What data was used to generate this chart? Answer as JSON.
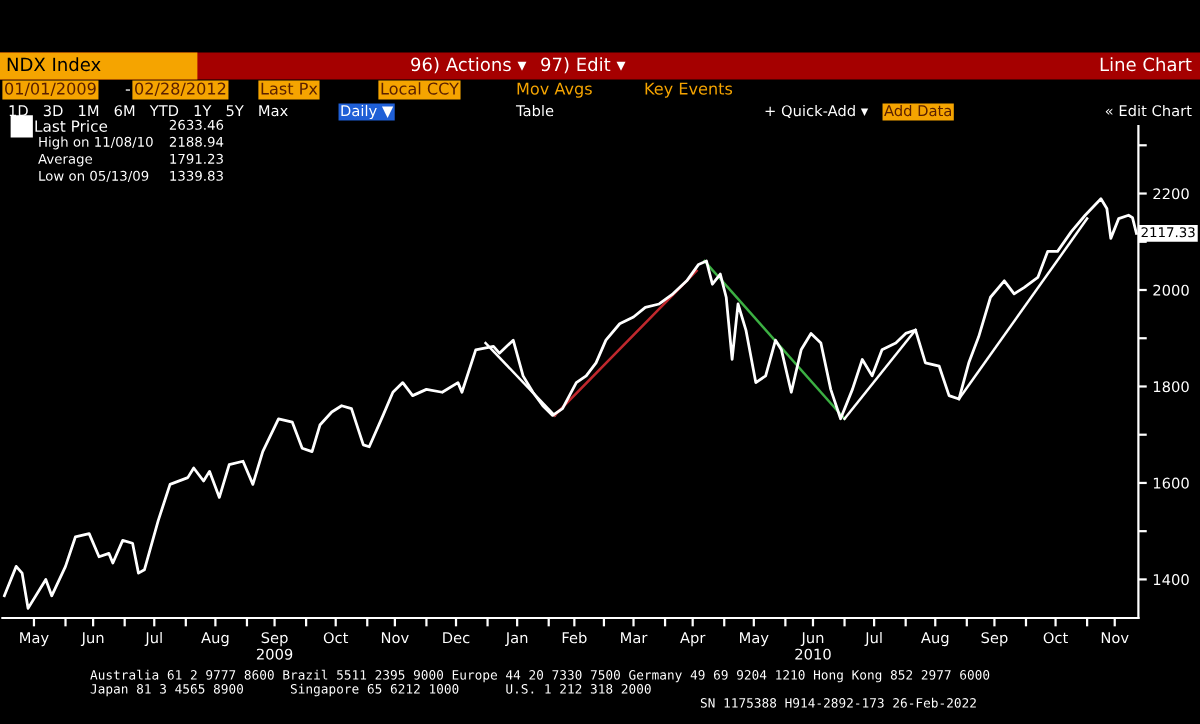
{
  "chart_data": {
    "type": "line",
    "title": "NDX Index",
    "subtitle": "Line Chart",
    "xlim": [
      "2009-04-30",
      "2010-11-27"
    ],
    "xticks": [
      {
        "value": "2009-05-16",
        "label": "May"
      },
      {
        "value": "2009-06-15",
        "label": "Jun"
      },
      {
        "value": "2009-07-16",
        "label": "Jul"
      },
      {
        "value": "2009-08-16",
        "label": "Aug"
      },
      {
        "value": "2009-09-15",
        "label": "Sep\n2009"
      },
      {
        "value": "2009-10-16",
        "label": "Oct"
      },
      {
        "value": "2009-11-15",
        "label": "Nov"
      },
      {
        "value": "2009-12-16",
        "label": "Dec"
      },
      {
        "value": "2010-01-16",
        "label": "Jan"
      },
      {
        "value": "2010-02-14",
        "label": "Feb"
      },
      {
        "value": "2010-03-16",
        "label": "Mar"
      },
      {
        "value": "2010-04-15",
        "label": "Apr"
      },
      {
        "value": "2010-05-16",
        "label": "May"
      },
      {
        "value": "2010-06-15",
        "label": "Jun\n2010"
      },
      {
        "value": "2010-07-16",
        "label": "Jul"
      },
      {
        "value": "2010-08-16",
        "label": "Aug"
      },
      {
        "value": "2010-09-15",
        "label": "Sep"
      },
      {
        "value": "2010-10-16",
        "label": "Oct"
      },
      {
        "value": "2010-11-15",
        "label": "Nov"
      },
      {
        "value": "2009-06-01",
        "label": null
      },
      {
        "value": "2009-07-01",
        "label": null
      },
      {
        "value": "2009-08-01",
        "label": null
      },
      {
        "value": "2009-09-01",
        "label": null
      },
      {
        "value": "2009-10-01",
        "label": null
      },
      {
        "value": "2009-11-01",
        "label": null
      },
      {
        "value": "2009-12-01",
        "label": null
      },
      {
        "value": "2010-01-01",
        "label": null
      },
      {
        "value": "2010-02-01",
        "label": null
      },
      {
        "value": "2010-03-01",
        "label": null
      },
      {
        "value": "2010-04-01",
        "label": null
      },
      {
        "value": "2010-05-01",
        "label": null
      },
      {
        "value": "2010-06-01",
        "label": null
      },
      {
        "value": "2010-07-01",
        "label": null
      },
      {
        "value": "2010-08-01",
        "label": null
      },
      {
        "value": "2010-09-01",
        "label": null
      },
      {
        "value": "2010-10-01",
        "label": null
      },
      {
        "value": "2010-11-01",
        "label": null
      }
    ],
    "ylim": [
      1320,
      2340
    ],
    "yticks": [
      1400,
      {
        "value": 1500,
        "label": null
      },
      1600,
      {
        "value": 1700,
        "label": null
      },
      1800,
      {
        "value": 1900,
        "label": null
      },
      2000,
      {
        "value": 2100,
        "label": null
      },
      2200,
      {
        "value": 2300,
        "label": null
      }
    ],
    "grid": false,
    "legend": "top left",
    "marker": "none",
    "line_style": "solid",
    "series": [
      {
        "name": "Last Price",
        "color": "#ffffff",
        "x": [
          "2009-05-01",
          "2009-05-07",
          "2009-05-10",
          "2009-05-13",
          "2009-05-22",
          "2009-05-25",
          "2009-06-01",
          "2009-06-06",
          "2009-06-13",
          "2009-06-18",
          "2009-06-23",
          "2009-06-25",
          "2009-06-30",
          "2009-07-05",
          "2009-07-08",
          "2009-07-11",
          "2009-07-18",
          "2009-07-24",
          "2009-08-02",
          "2009-08-05",
          "2009-08-10",
          "2009-08-13",
          "2009-08-18",
          "2009-08-23",
          "2009-08-30",
          "2009-09-04",
          "2009-09-09",
          "2009-09-17",
          "2009-09-24",
          "2009-09-29",
          "2009-10-04",
          "2009-10-08",
          "2009-10-14",
          "2009-10-19",
          "2009-10-24",
          "2009-10-30",
          "2009-11-02",
          "2009-11-09",
          "2009-11-14",
          "2009-11-19",
          "2009-11-24",
          "2009-12-01",
          "2009-12-09",
          "2009-12-17",
          "2009-12-19",
          "2009-12-26",
          "2010-01-04",
          "2010-01-07",
          "2010-01-14",
          "2010-01-19",
          "2010-01-24",
          "2010-01-29",
          "2010-02-03",
          "2010-02-08",
          "2010-02-15",
          "2010-02-20",
          "2010-02-25",
          "2010-03-02",
          "2010-03-09",
          "2010-03-16",
          "2010-03-22",
          "2010-03-29",
          "2010-04-05",
          "2010-04-12",
          "2010-04-18",
          "2010-04-22",
          "2010-04-25",
          "2010-04-29",
          "2010-05-02",
          "2010-05-05",
          "2010-05-08",
          "2010-05-12",
          "2010-05-17",
          "2010-05-22",
          "2010-05-27",
          "2010-05-30",
          "2010-06-04",
          "2010-06-09",
          "2010-06-14",
          "2010-06-19",
          "2010-06-24",
          "2010-06-29",
          "2010-07-05",
          "2010-07-10",
          "2010-07-15",
          "2010-07-20",
          "2010-07-27",
          "2010-08-01",
          "2010-08-06",
          "2010-08-11",
          "2010-08-18",
          "2010-08-23",
          "2010-08-28",
          "2010-09-02",
          "2010-09-07",
          "2010-09-13",
          "2010-09-20",
          "2010-09-25",
          "2010-09-30",
          "2010-10-07",
          "2010-10-12",
          "2010-10-17",
          "2010-10-24",
          "2010-10-31",
          "2010-11-08",
          "2010-11-11",
          "2010-11-13",
          "2010-11-17",
          "2010-11-22",
          "2010-11-24",
          "2010-11-26"
        ],
        "values": [
          1366,
          1427,
          1413,
          1340,
          1400,
          1366,
          1427,
          1488,
          1495,
          1447,
          1454,
          1434,
          1481,
          1475,
          1413,
          1420,
          1522,
          1597,
          1611,
          1631,
          1604,
          1624,
          1570,
          1638,
          1645,
          1597,
          1665,
          1733,
          1726,
          1672,
          1665,
          1720,
          1747,
          1760,
          1754,
          1679,
          1675,
          1740,
          1788,
          1808,
          1781,
          1794,
          1788,
          1808,
          1788,
          1876,
          1883,
          1869,
          1896,
          1822,
          1788,
          1760,
          1740,
          1754,
          1808,
          1822,
          1849,
          1896,
          1930,
          1944,
          1964,
          1971,
          1992,
          2019,
          2053,
          2060,
          2012,
          2033,
          1985,
          1856,
          1971,
          1917,
          1808,
          1822,
          1896,
          1876,
          1788,
          1876,
          1910,
          1890,
          1794,
          1733,
          1794,
          1856,
          1822,
          1876,
          1890,
          1910,
          1917,
          1849,
          1842,
          1781,
          1774,
          1849,
          1903,
          1985,
          2019,
          1992,
          2005,
          2026,
          2080,
          2080,
          2121,
          2155,
          2189,
          2169,
          2107,
          2148,
          2155,
          2150,
          2117.33
        ]
      },
      {
        "type": "line",
        "color": "#ffffff",
        "x": [
          "2009-12-31",
          "2010-02-04"
        ],
        "values": [
          1890,
          1740
        ]
      },
      {
        "type": "line",
        "color": "#c0282d",
        "x": [
          "2010-02-04",
          "2010-04-17"
        ],
        "values": [
          1740,
          2040
        ]
      },
      {
        "type": "line",
        "color": "#3cb043",
        "x": [
          "2010-04-21",
          "2010-07-01"
        ],
        "values": [
          2060,
          1733
        ]
      },
      {
        "type": "line",
        "color": "#ffffff",
        "x": [
          "2010-07-01",
          "2010-08-06"
        ],
        "values": [
          1733,
          1917
        ]
      },
      {
        "type": "line",
        "color": "#ffffff",
        "x": [
          "2010-08-28",
          "2010-11-01"
        ],
        "values": [
          1774,
          2148
        ]
      }
    ],
    "annotations": [
      "2633.46",
      "High on 11/08/10",
      "2188.94",
      "Average",
      "1791.23",
      "Low on 05/13/09",
      "1339.83",
      {
        "text": "2117.33",
        "x": "2010-11-26",
        "y": 2117.33
      },
      "96) Actions ▾",
      "97) Edit ▾",
      "01/01/2009",
      "02/28/2012",
      "Last Px",
      "Local CCY",
      "Mov Avgs",
      "Key Events",
      "1D   3D   1M   6M   YTD   1Y   5Y   Max",
      "Daily ▼",
      "Table",
      "+ Quick-Add ▾",
      "Add Data",
      "« Edit Chart",
      "Australia 61 2 9777 8600 Brazil 5511 2395 9000 Europe 44 20 7330 7500 Germany 49 69 9204 1210 Hong Kong 852 2977 6000",
      "Japan 81 3 4565 8900      Singapore 65 6212 1000      U.S. 1 212 318 2000",
      "SN 1175388 H914-2892-173 26-Feb-2022",
      "-"
    ]
  }
}
